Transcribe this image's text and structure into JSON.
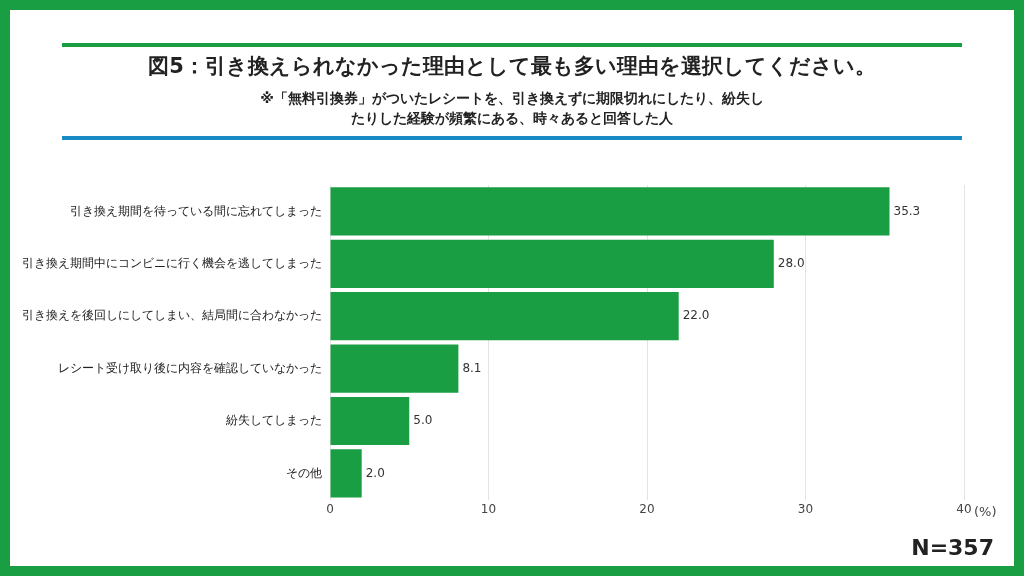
{
  "chart_data": {
    "type": "bar",
    "orientation": "horizontal",
    "title": "図5：引き換えられなかった理由として最も多い理由を選択してください。",
    "subtitle": "※「無料引換券」がついたレシートを、引き換えずに期限切れにしたり、紛失したりした経験が頻繁にある、時々あると回答した人",
    "categories": [
      "引き換え期間を待っている間に忘れてしまった",
      "引き換え期間中にコンビニに行く機会を逃してしまった",
      "引き換えを後回しにしてしまい、結局間に合わなかった",
      "レシート受け取り後に内容を確認していなかった",
      "紛失してしまった",
      "その他"
    ],
    "values": [
      35.3,
      28.0,
      22.0,
      8.1,
      5.0,
      2.0
    ],
    "value_labels": [
      "35.3",
      "28.0",
      "22.0",
      "8.1",
      "5.0",
      "2.0"
    ],
    "color": "#1a9e43",
    "xlim": [
      0,
      40
    ],
    "xticks": [
      0,
      10,
      20,
      30,
      40
    ],
    "xlabel": "(%)",
    "grid": "x",
    "legend": false,
    "annotations": [
      "N=357"
    ]
  }
}
